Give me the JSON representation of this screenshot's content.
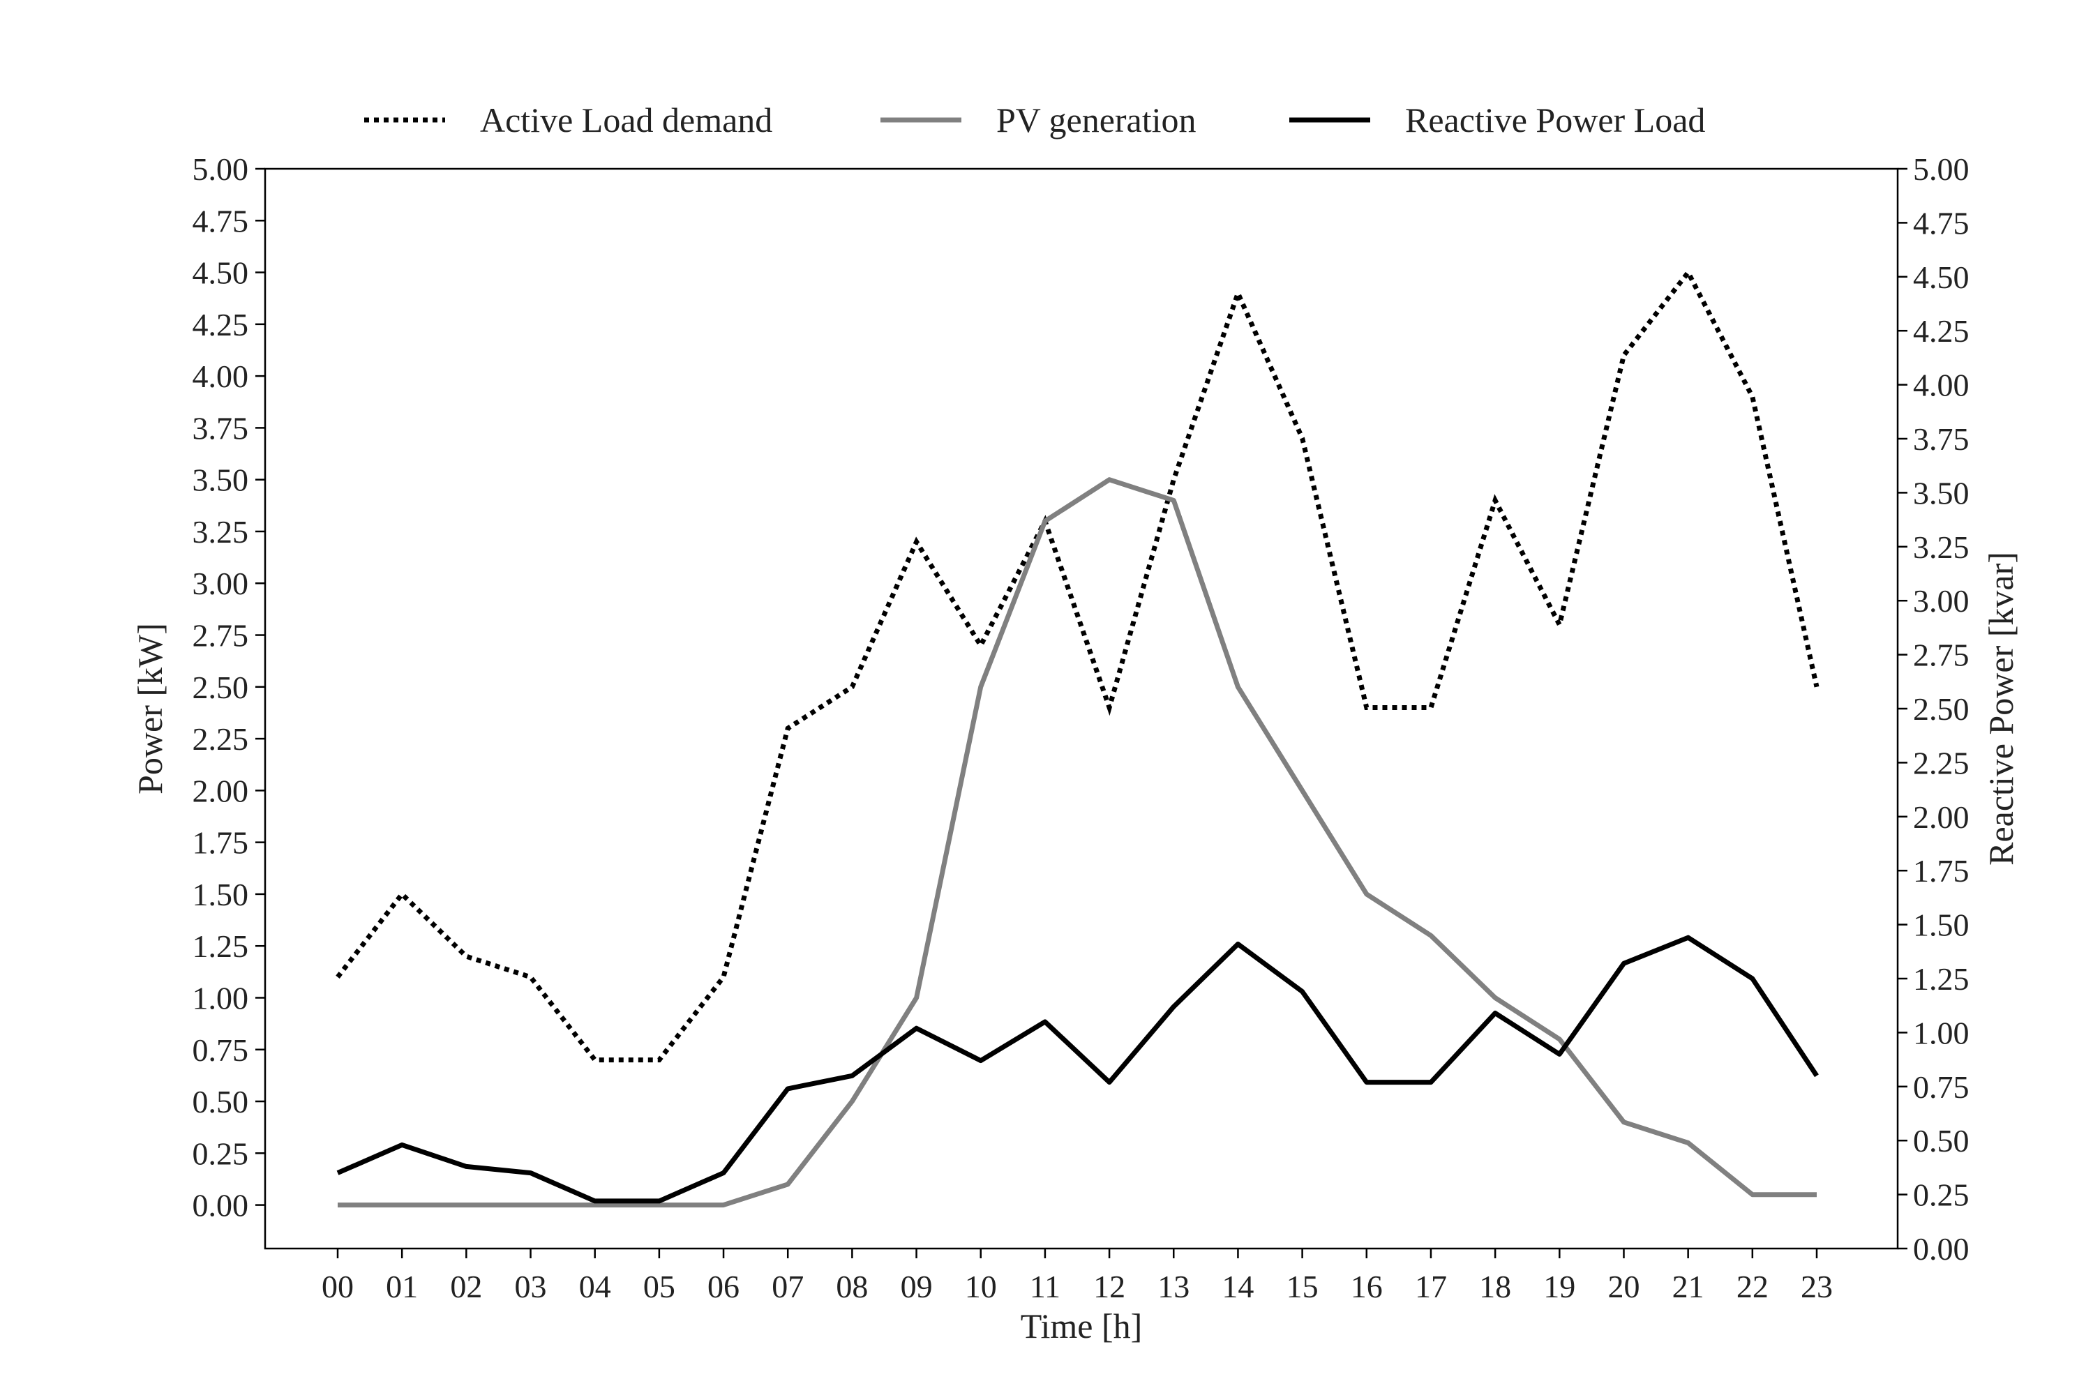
{
  "chart_data": {
    "type": "line",
    "xlabel": "Time [h]",
    "ylabel": "Power [kW]",
    "y2label": "Reactive Power [kvar]",
    "categories": [
      "00",
      "01",
      "02",
      "03",
      "04",
      "05",
      "06",
      "07",
      "08",
      "09",
      "10",
      "11",
      "12",
      "13",
      "14",
      "15",
      "16",
      "17",
      "18",
      "19",
      "20",
      "21",
      "22",
      "23"
    ],
    "ylim": [
      -0.21,
      5.0
    ],
    "y2lim": [
      0.0,
      5.0
    ],
    "yticks": [
      "0.00",
      "0.25",
      "0.50",
      "0.75",
      "1.00",
      "1.25",
      "1.50",
      "1.75",
      "2.00",
      "2.25",
      "2.50",
      "2.75",
      "3.00",
      "3.25",
      "3.50",
      "3.75",
      "4.00",
      "4.25",
      "4.50",
      "4.75",
      "5.00"
    ],
    "y2ticks": [
      "0.00",
      "0.25",
      "0.50",
      "0.75",
      "1.00",
      "1.25",
      "1.50",
      "1.75",
      "2.00",
      "2.25",
      "2.50",
      "2.75",
      "3.00",
      "3.25",
      "3.50",
      "3.75",
      "4.00",
      "4.25",
      "4.50",
      "4.75",
      "5.00"
    ],
    "legend_position": "top",
    "grid": false,
    "series": [
      {
        "name": "Active Load demand",
        "axis": "left",
        "color": "#000000",
        "style": "dotted",
        "values": [
          1.1,
          1.5,
          1.2,
          1.1,
          0.7,
          0.7,
          1.1,
          2.3,
          2.5,
          3.2,
          2.7,
          3.3,
          2.4,
          3.5,
          4.4,
          3.7,
          2.4,
          2.4,
          3.4,
          2.8,
          4.1,
          4.5,
          3.9,
          2.5
        ]
      },
      {
        "name": "PV generation",
        "axis": "left",
        "color": "#808080",
        "style": "solid",
        "values": [
          0.0,
          0.0,
          0.0,
          0.0,
          0.0,
          0.0,
          0.0,
          0.1,
          0.5,
          1.0,
          2.5,
          3.3,
          3.5,
          3.4,
          2.5,
          2.0,
          1.5,
          1.3,
          1.0,
          0.8,
          0.4,
          0.3,
          0.05,
          0.05
        ]
      },
      {
        "name": "Reactive Power Load",
        "axis": "right",
        "color": "#000000",
        "style": "solid",
        "values": [
          0.35,
          0.48,
          0.38,
          0.35,
          0.22,
          0.22,
          0.35,
          0.74,
          0.8,
          1.02,
          0.87,
          1.05,
          0.77,
          1.12,
          1.41,
          1.19,
          0.77,
          0.77,
          1.09,
          0.9,
          1.32,
          1.44,
          1.25,
          0.8
        ]
      }
    ]
  }
}
